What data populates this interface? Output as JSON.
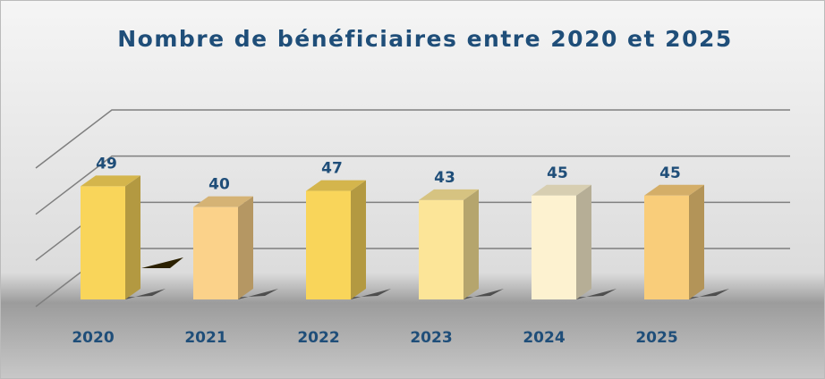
{
  "chart_data": {
    "type": "bar3d",
    "title": "Nombre de bénéficiaires entre 2020 et 2025",
    "categories": [
      "2020",
      "2021",
      "2022",
      "2023",
      "2024",
      "2025"
    ],
    "values": [
      49,
      40,
      47,
      43,
      45,
      45
    ],
    "colors": [
      "#f9d55a",
      "#fbd28a",
      "#f9d55a",
      "#fce598",
      "#fdf2d0",
      "#f9cd7a"
    ],
    "ylim": [
      0,
      60
    ],
    "yticks": [
      0,
      20,
      40,
      60
    ],
    "grid": true
  }
}
